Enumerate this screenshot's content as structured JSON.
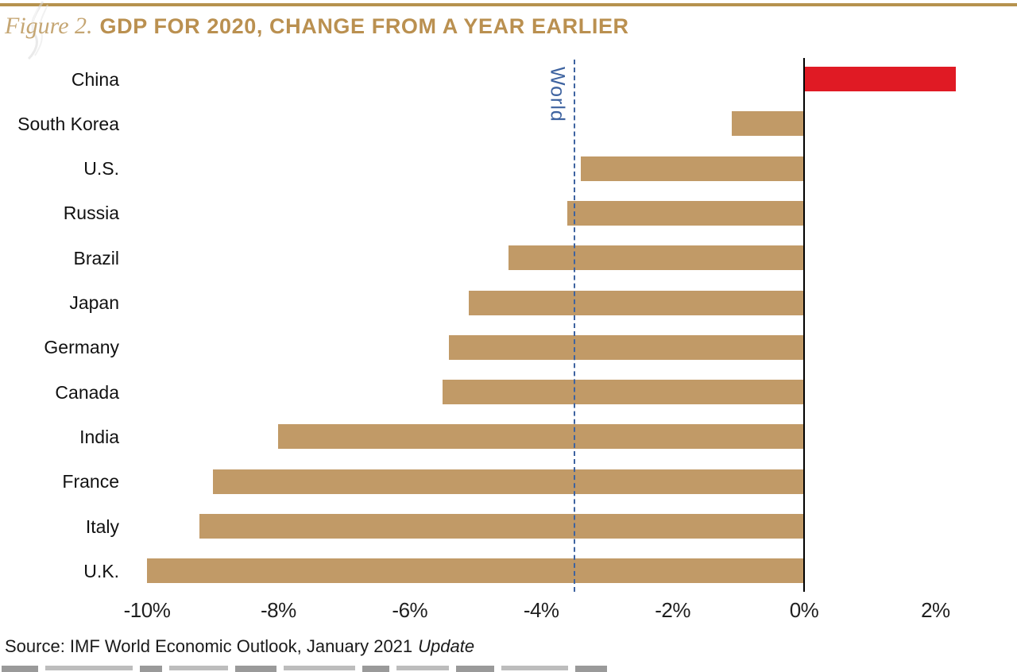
{
  "header": {
    "figure_label": "Figure 2.",
    "title": "GDP FOR 2020, CHANGE FROM A YEAR EARLIER",
    "title_color": "#ba9050",
    "rule_color": "#b6924e"
  },
  "chart_data": {
    "type": "bar",
    "orientation": "horizontal",
    "title": "GDP FOR 2020, CHANGE FROM A YEAR EARLIER",
    "categories": [
      "China",
      "South Korea",
      "U.S.",
      "Russia",
      "Brazil",
      "Japan",
      "Germany",
      "Canada",
      "India",
      "France",
      "Italy",
      "U.K."
    ],
    "values": [
      2.3,
      -1.1,
      -3.4,
      -3.6,
      -4.5,
      -5.1,
      -5.4,
      -5.5,
      -8.0,
      -9.0,
      -9.2,
      -10.0
    ],
    "unit": "%",
    "bar_color": "#c19a67",
    "positive_bar_color": "#e01a24",
    "reference_line": {
      "label": "World",
      "value": -3.5,
      "color": "#3e63a0",
      "style": "dashed"
    },
    "x_ticks": [
      "-10%",
      "-8%",
      "-6%",
      "-4%",
      "-2%",
      "0%",
      "2%"
    ],
    "x_tick_values": [
      -10,
      -8,
      -6,
      -4,
      -2,
      0,
      2
    ],
    "xlim": [
      -10,
      2
    ],
    "grid": false,
    "legend": false
  },
  "footer": {
    "source_text": "Source: IMF World Economic Outlook, January 2021",
    "source_update": "Update"
  }
}
